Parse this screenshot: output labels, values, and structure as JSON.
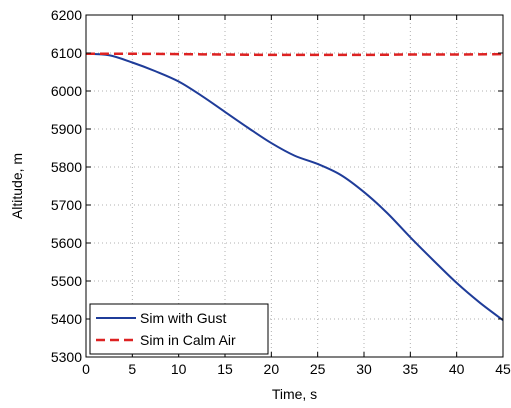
{
  "chart_data": {
    "type": "line",
    "title": "",
    "xlabel": "Time, s",
    "ylabel": "Altitude, m",
    "xlim": [
      0,
      45
    ],
    "ylim": [
      5300,
      6200
    ],
    "xticks": [
      0,
      5,
      10,
      15,
      20,
      25,
      30,
      35,
      40,
      45
    ],
    "yticks": [
      5300,
      5400,
      5500,
      5600,
      5700,
      5800,
      5900,
      6000,
      6100,
      6200
    ],
    "grid": true,
    "legend_position": "bottom-left",
    "series": [
      {
        "name": "Sim with Gust",
        "color": "#1f3c99",
        "style": "solid",
        "x": [
          0,
          2.5,
          5,
          7.5,
          10,
          12.5,
          15,
          17.5,
          20,
          22.5,
          25,
          27.5,
          30,
          32.5,
          35,
          37.5,
          40,
          42.5,
          45
        ],
        "y": [
          6098,
          6094,
          6075,
          6052,
          6025,
          5987,
          5945,
          5903,
          5863,
          5830,
          5808,
          5779,
          5734,
          5679,
          5615,
          5554,
          5495,
          5443,
          5397
        ]
      },
      {
        "name": "Sim in Calm Air",
        "color": "#dd2222",
        "style": "dashed",
        "x": [
          0,
          5,
          10,
          15,
          20,
          25,
          30,
          35,
          40,
          45
        ],
        "y": [
          6098,
          6098,
          6097,
          6096,
          6095,
          6095,
          6095,
          6096,
          6096,
          6097
        ]
      }
    ]
  }
}
